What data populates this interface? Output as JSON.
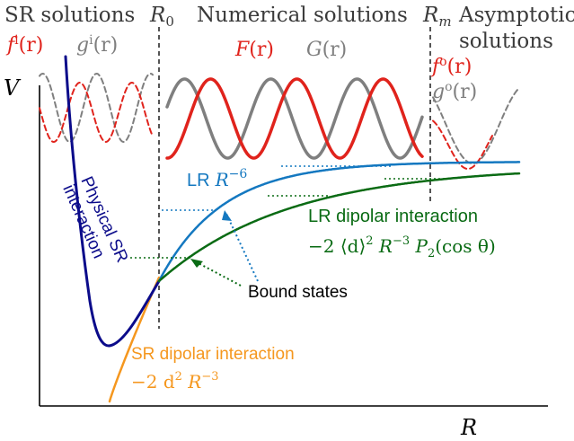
{
  "header": {
    "sr_solutions": "SR solutions",
    "r0": "R",
    "r0_sub": "0",
    "numerical_solutions": "Numerical solutions",
    "rm": "R",
    "rm_sub": "m",
    "asymptotic_line1": "Asymptotic",
    "asymptotic_line2": "solutions"
  },
  "axes": {
    "y_label": "V",
    "x_label": "R"
  },
  "wave_labels": {
    "f_inner": "f",
    "f_inner_sup": "i",
    "f_inner_arg": "(r)",
    "g_inner": "g",
    "g_inner_sup": "i",
    "g_inner_arg": "(r)",
    "F": "F",
    "F_arg": "(r)",
    "G": "G",
    "G_arg": "(r)",
    "f_outer": "f",
    "f_outer_sup": "o",
    "f_outer_arg": "(r)",
    "g_outer": "g",
    "g_outer_sup": "o",
    "g_outer_arg": "(r)"
  },
  "curve_labels": {
    "physical_sr_line1": "Physical SR",
    "physical_sr_line2": "interaction",
    "lr_label": "LR",
    "lr_formula": "R",
    "lr_exp": "−6",
    "lr_dipolar": "LR dipolar interaction",
    "lr_dipolar_formula_a": "−2 ⟨d⟩",
    "lr_dipolar_formula_b": "2",
    "lr_dipolar_formula_c": " R",
    "lr_dipolar_formula_d": "−3",
    "lr_dipolar_formula_e": " P",
    "lr_dipolar_formula_f": "2",
    "lr_dipolar_formula_g": "(cos θ)",
    "bound_states": "Bound states",
    "sr_dipolar": "SR dipolar interaction",
    "sr_dipolar_formula_a": "−2 d",
    "sr_dipolar_formula_b": "2",
    "sr_dipolar_formula_c": " R",
    "sr_dipolar_formula_d": "−3"
  },
  "colors": {
    "red": "#e0231c",
    "gray": "#7f7f7f",
    "navy": "#0b0b8a",
    "blue": "#1478c0",
    "green": "#0a6b14",
    "orange": "#f5971e",
    "divider": "#555555",
    "text": "#3a3a3a"
  }
}
